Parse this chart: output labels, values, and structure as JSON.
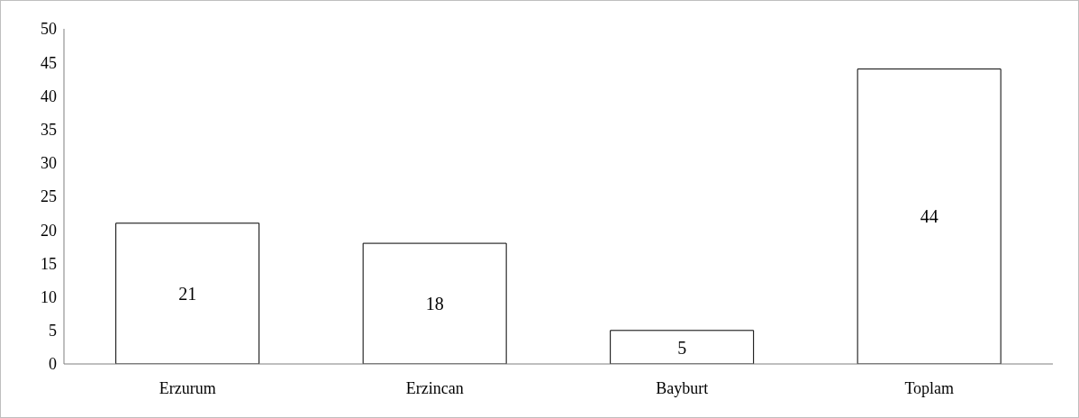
{
  "chart_data": {
    "type": "bar",
    "categories": [
      "Erzurum",
      "Erzincan",
      "Bayburt",
      "Toplam"
    ],
    "values": [
      21,
      18,
      5,
      44
    ],
    "color": "#ffffff",
    "ylim": [
      0,
      50
    ],
    "yticks": [
      0,
      5,
      10,
      15,
      20,
      25,
      30,
      35,
      40,
      45,
      50
    ],
    "grid": false,
    "data_labels": true
  }
}
